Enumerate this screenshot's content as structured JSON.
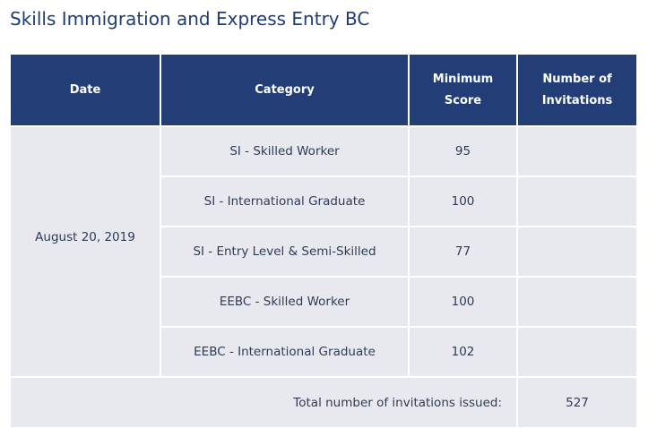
{
  "page": {
    "title": "Skills Immigration and Express Entry BC"
  },
  "table": {
    "headers": {
      "date": "Date",
      "category": "Category",
      "min_score_line1": "Minimum",
      "min_score_line2": "Score",
      "invitations_line1": "Number of",
      "invitations_line2": "Invitations"
    },
    "date": "August 20, 2019",
    "rows": [
      {
        "category": "SI - Skilled Worker",
        "min_score": "95",
        "invitations": ""
      },
      {
        "category": "SI - International Graduate",
        "min_score": "100",
        "invitations": ""
      },
      {
        "category": "SI - Entry Level & Semi-Skilled",
        "min_score": "77",
        "invitations": ""
      },
      {
        "category": "EEBC - Skilled Worker",
        "min_score": "100",
        "invitations": ""
      },
      {
        "category": "EEBC - International Graduate",
        "min_score": "102",
        "invitations": ""
      }
    ],
    "total": {
      "label": "Total number of invitations issued:",
      "value": "527"
    }
  }
}
